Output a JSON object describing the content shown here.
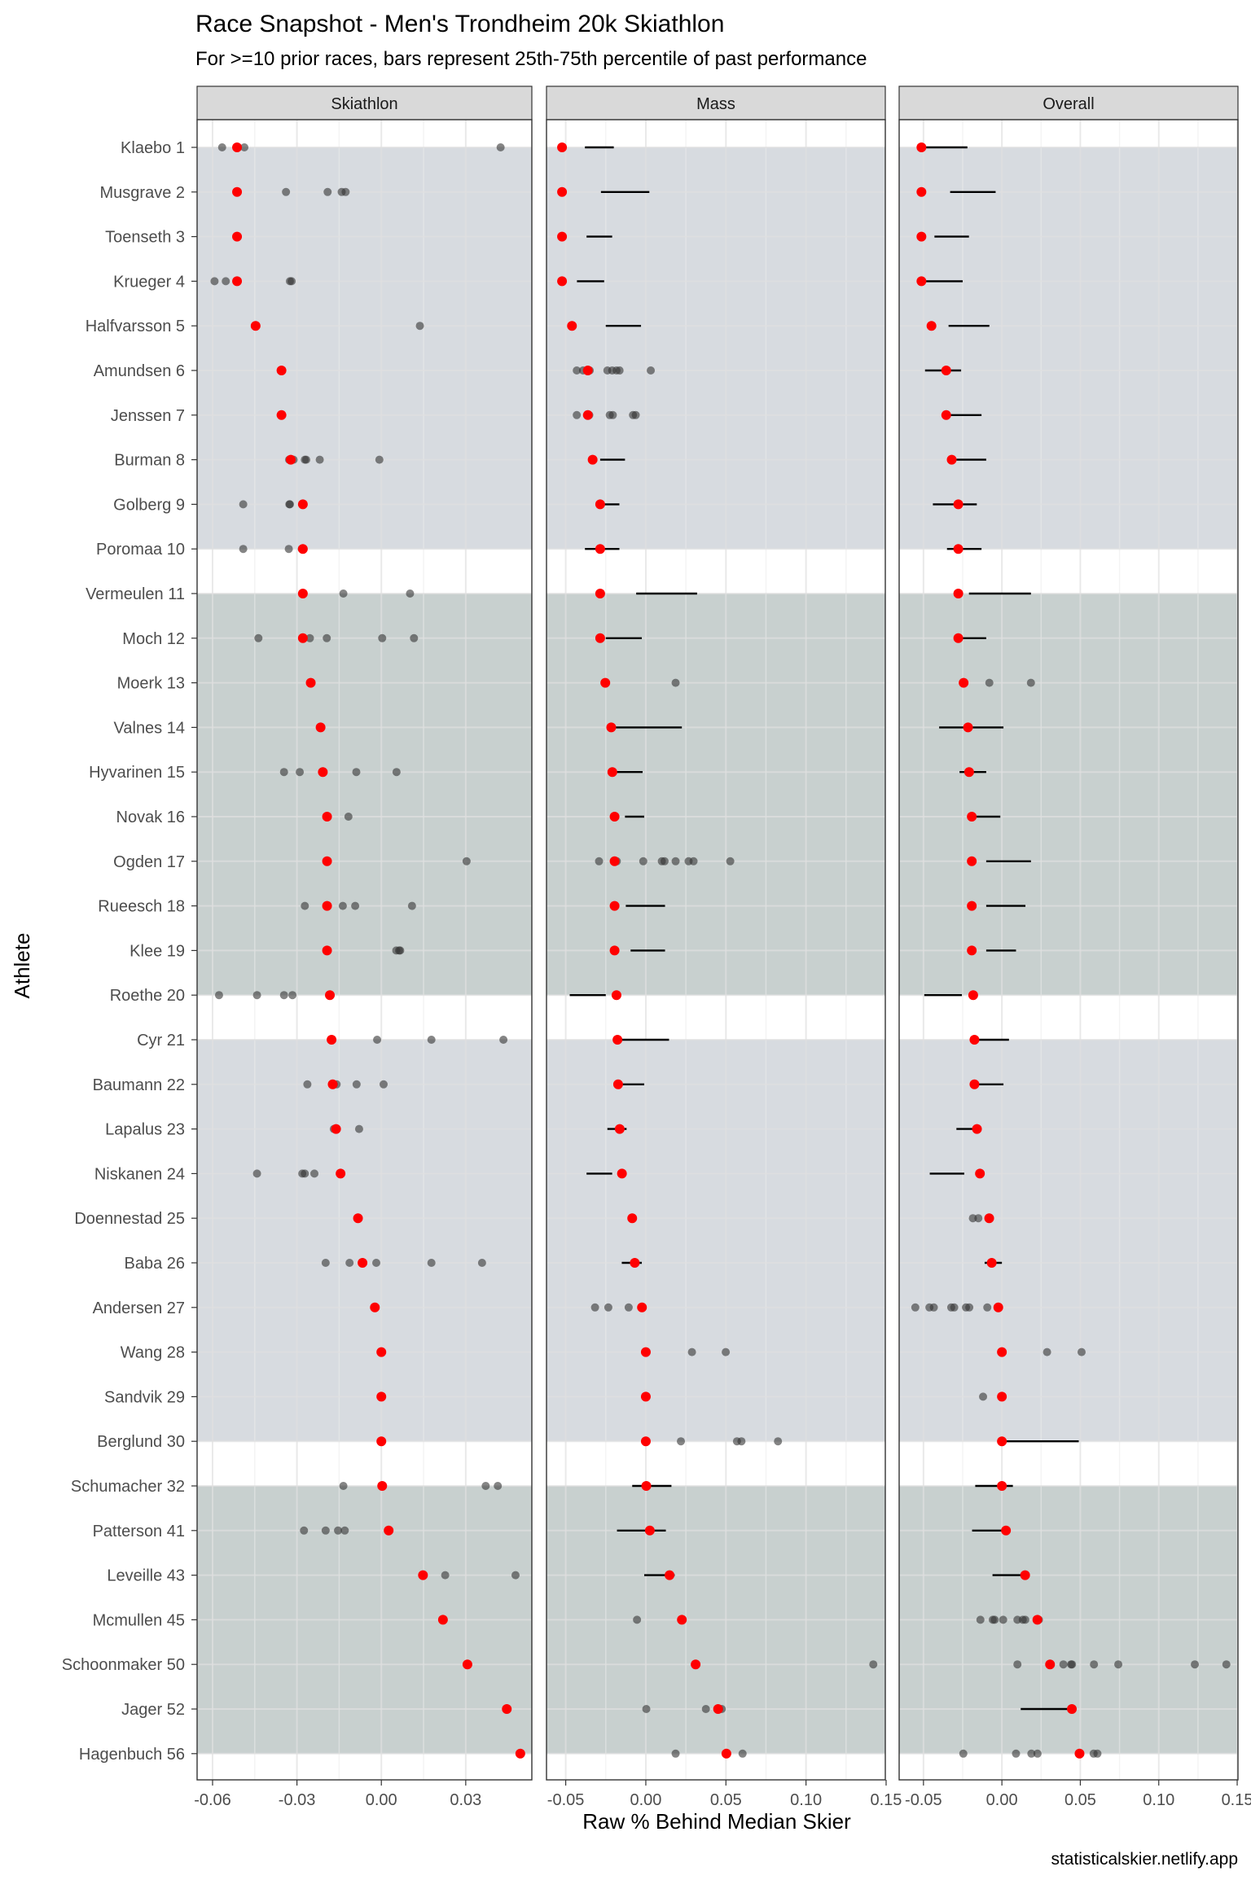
{
  "chart_data": {
    "type": "scatter",
    "title": "Race Snapshot -  Men's Trondheim 20k  Skiathlon",
    "subtitle": "For >=10 prior races, bars represent 25th-75th percentile of past performance",
    "xlabel": "Raw % Behind Median Skier",
    "ylabel": "Athlete",
    "caption": "statisticalskier.netlify.app",
    "athletes": [
      "Klaebo 1",
      "Musgrave 2",
      "Toenseth 3",
      "Krueger 4",
      "Halfvarsson 5",
      "Amundsen 6",
      "Jenssen 7",
      "Burman 8",
      "Golberg 9",
      "Poromaa 10",
      "Vermeulen 11",
      "Moch 12",
      "Moerk 13",
      "Valnes 14",
      "Hyvarinen 15",
      "Novak 16",
      "Ogden 17",
      "Rueesch 18",
      "Klee 19",
      "Roethe 20",
      "Cyr 21",
      "Baumann 22",
      "Lapalus 23",
      "Niskanen 24",
      "Doennestad 25",
      "Baba 26",
      "Andersen 27",
      "Wang 28",
      "Sandvik 29",
      "Berglund 30",
      "Schumacher 32",
      "Patterson 41",
      "Leveille 43",
      "Mcmullen 45",
      "Schoonmaker 50",
      "Jager 52",
      "Hagenbuch 56"
    ],
    "bands": [
      {
        "from": 0,
        "to": 9,
        "color": "#d7dbe0"
      },
      {
        "from": 10,
        "to": 19,
        "color": "#c8d0cf"
      },
      {
        "from": 20,
        "to": 29,
        "color": "#d7dbe0"
      },
      {
        "from": 30,
        "to": 36,
        "color": "#c8d0cf"
      }
    ],
    "colors": {
      "current": "#ff0000",
      "past": "#333333",
      "bar": "#000000",
      "strip": "#d9d9d9"
    },
    "facets": [
      {
        "name": "Skiathlon",
        "xlim": [
          -0.0655,
          0.0535
        ],
        "ticks": [
          -0.06,
          -0.03,
          0.0,
          0.03
        ],
        "tick_labels": [
          "-0.06",
          "-0.03",
          "0.00",
          "0.03"
        ],
        "current": [
          -0.0513,
          -0.0513,
          -0.0513,
          -0.0513,
          -0.0447,
          -0.0355,
          -0.0355,
          -0.0322,
          -0.0279,
          -0.0279,
          -0.0279,
          -0.0279,
          -0.0251,
          -0.0216,
          -0.0208,
          -0.0193,
          -0.0193,
          -0.0193,
          -0.0193,
          -0.0183,
          -0.0177,
          -0.0173,
          -0.0161,
          -0.0145,
          -0.0083,
          -0.0067,
          -0.0023,
          0.0,
          0.0,
          0.0,
          0.0003,
          0.0026,
          0.0148,
          0.0219,
          0.0306,
          0.0446,
          0.0494
        ],
        "past": [
          [
            -0.0566,
            -0.0487,
            0.0424
          ],
          [
            -0.0339,
            -0.0191,
            -0.0141,
            -0.0127
          ],
          [],
          [
            -0.0593,
            -0.0553,
            -0.0325,
            -0.0319
          ],
          [
            -0.0445,
            0.0137
          ],
          [],
          [],
          [
            -0.0328,
            -0.0312,
            -0.0272,
            -0.0267,
            -0.0219,
            -0.0007
          ],
          [
            -0.0491,
            -0.0327,
            -0.0325
          ],
          [
            -0.0491,
            -0.0329,
            -0.0283
          ],
          [
            -0.0135,
            0.0102
          ],
          [
            -0.0437,
            -0.0254,
            -0.0194,
            0.0003,
            0.0116
          ],
          [],
          [],
          [
            -0.0346,
            -0.029,
            -0.0089,
            0.0054
          ],
          [
            -0.0117
          ],
          [
            0.0303
          ],
          [
            -0.0272,
            -0.0137,
            -0.0093,
            0.0109
          ],
          [
            0.0053,
            0.0063,
            0.0067
          ],
          [
            -0.0577,
            -0.0442,
            -0.0346,
            -0.0316
          ],
          [
            -0.0015,
            0.0178,
            0.0434
          ],
          [
            -0.0263,
            -0.0169,
            -0.0159,
            -0.0088,
            0.0008
          ],
          [
            -0.0169,
            -0.0079
          ],
          [
            -0.0442,
            -0.0281,
            -0.0272,
            -0.0238
          ],
          [],
          [
            -0.0198,
            -0.0113,
            -0.0018,
            0.0178,
            0.0358
          ],
          [],
          [],
          [],
          [],
          [
            -0.0135,
            0.0371,
            0.0414
          ],
          [
            -0.0275,
            -0.0198,
            -0.0154,
            -0.013
          ],
          [
            0.0227,
            0.0477
          ],
          [],
          [],
          [],
          []
        ],
        "bars": [
          null,
          null,
          null,
          null,
          null,
          null,
          null,
          null,
          null,
          null,
          null,
          null,
          null,
          null,
          null,
          null,
          null,
          null,
          null,
          null,
          null,
          null,
          null,
          null,
          null,
          null,
          null,
          null,
          null,
          null,
          null,
          null,
          null,
          null,
          null,
          null,
          null
        ]
      },
      {
        "name": "Mass",
        "xlim": [
          -0.062,
          0.1495
        ],
        "ticks": [
          -0.05,
          0.0,
          0.05,
          0.1,
          0.15
        ],
        "tick_labels": [
          "-0.05",
          "0.00",
          "0.05",
          "0.10",
          "0.15"
        ],
        "current": [
          -0.0523,
          -0.0523,
          -0.0523,
          -0.0523,
          -0.0461,
          -0.0362,
          -0.0362,
          -0.0332,
          -0.0285,
          -0.0285,
          -0.0285,
          -0.0285,
          -0.0253,
          -0.0216,
          -0.0209,
          -0.0195,
          -0.0195,
          -0.0195,
          -0.0195,
          -0.0183,
          -0.0177,
          -0.0173,
          -0.0163,
          -0.0149,
          -0.0085,
          -0.0069,
          -0.0024,
          0.0,
          0.0,
          0.0,
          0.0003,
          0.0025,
          0.0148,
          0.0225,
          0.0311,
          0.0451,
          0.0503
        ],
        "past": [
          [],
          [],
          [],
          [],
          [],
          [
            -0.0431,
            -0.0392,
            -0.035,
            -0.024,
            -0.021,
            -0.0183,
            -0.0164,
            0.0031
          ],
          [
            -0.0431,
            -0.0353,
            -0.0225,
            -0.0206,
            -0.008,
            -0.0063
          ],
          [],
          [],
          [],
          [],
          [],
          [
            0.0186
          ],
          [],
          [],
          [],
          [
            -0.0292,
            -0.0181,
            -0.0016,
            0.01,
            0.0117,
            0.0186,
            0.0267,
            0.0298,
            0.0527
          ],
          [],
          [],
          [],
          [],
          [],
          [],
          [],
          [],
          [],
          [
            -0.0317,
            -0.0234,
            -0.0107
          ],
          [
            0.0288,
            0.0499
          ],
          [],
          [
            0.0219,
            0.0569,
            0.0597,
            0.0825
          ],
          [],
          [],
          [],
          [
            -0.0055
          ],
          [
            0.142
          ],
          [
            0.0003,
            0.0375,
            0.0458,
            0.0474
          ],
          [
            0.0186,
            0.0604
          ]
        ],
        "bars": [
          [
            -0.038,
            -0.02
          ],
          [
            -0.028,
            0.0022
          ],
          [
            -0.037,
            -0.021
          ],
          [
            -0.043,
            -0.026
          ],
          [
            -0.025,
            -0.003
          ],
          null,
          null,
          [
            -0.0285,
            -0.013
          ],
          [
            -0.028,
            -0.0165
          ],
          [
            -0.038,
            -0.0165
          ],
          [
            -0.006,
            0.032
          ],
          [
            -0.025,
            -0.0025
          ],
          null,
          [
            -0.021,
            0.0225
          ],
          [
            -0.021,
            -0.002
          ],
          [
            -0.013,
            -0.001
          ],
          null,
          [
            -0.0125,
            0.012
          ],
          [
            -0.0095,
            0.012
          ],
          [
            -0.0475,
            -0.025
          ],
          [
            -0.017,
            0.0145
          ],
          [
            -0.018,
            -0.001
          ],
          [
            -0.024,
            -0.012
          ],
          [
            -0.037,
            -0.021
          ],
          null,
          [
            -0.015,
            -0.0025
          ],
          null,
          null,
          null,
          null,
          [
            -0.0085,
            0.016
          ],
          [
            -0.018,
            0.0125
          ],
          [
            -0.001,
            0.018
          ],
          null,
          null,
          null,
          null
        ]
      },
      {
        "name": "Overall",
        "xlim": [
          -0.0655,
          0.1505
        ],
        "ticks": [
          -0.05,
          0.0,
          0.05,
          0.1,
          0.15
        ],
        "tick_labels": [
          "-0.05",
          "0.00",
          "0.05",
          "0.10",
          "0.15"
        ],
        "current": [
          -0.0513,
          -0.0513,
          -0.0513,
          -0.0513,
          -0.0449,
          -0.0355,
          -0.0355,
          -0.032,
          -0.0278,
          -0.0278,
          -0.0278,
          -0.0278,
          -0.0244,
          -0.0216,
          -0.0209,
          -0.0192,
          -0.0192,
          -0.0192,
          -0.0192,
          -0.0183,
          -0.0175,
          -0.0175,
          -0.0159,
          -0.014,
          -0.0081,
          -0.0065,
          -0.0023,
          0.0,
          0.0,
          0.0,
          0.0,
          0.0026,
          0.0148,
          0.0226,
          0.0307,
          0.0446,
          0.0495
        ],
        "past": [
          [],
          [],
          [],
          [],
          [],
          [],
          [],
          [],
          [],
          [],
          [],
          [],
          [
            -0.008,
            0.0185
          ],
          [],
          [],
          [],
          [],
          [],
          [],
          [],
          [],
          [],
          [],
          [],
          [
            -0.0185,
            -0.015
          ],
          [],
          [
            -0.0552,
            -0.0462,
            -0.0434,
            -0.0323,
            -0.0304,
            -0.0229,
            -0.0208,
            -0.0093
          ],
          [
            0.0288,
            0.0508
          ],
          [
            -0.012
          ],
          [],
          [],
          [],
          [],
          [
            -0.0137,
            -0.0058,
            -0.0046,
            0.0008,
            0.0099,
            0.0133,
            0.0149,
            0.0236
          ],
          [
            0.0099,
            0.0392,
            0.0441,
            0.0447,
            0.0587,
            0.0742,
            0.123,
            0.1431
          ],
          [],
          [
            -0.0246,
            0.009,
            0.0188,
            0.0227,
            0.0585,
            0.0609
          ]
        ],
        "bars": [
          [
            -0.05,
            -0.022
          ],
          [
            -0.033,
            -0.004
          ],
          [
            -0.043,
            -0.021
          ],
          [
            -0.05,
            -0.025
          ],
          [
            -0.034,
            -0.008
          ],
          [
            -0.049,
            -0.026
          ],
          [
            -0.033,
            -0.013
          ],
          [
            -0.029,
            -0.01
          ],
          [
            -0.044,
            -0.016
          ],
          [
            -0.035,
            -0.013
          ],
          [
            -0.021,
            0.0185
          ],
          [
            -0.028,
            -0.01
          ],
          null,
          [
            -0.04,
            0.001
          ],
          [
            -0.027,
            -0.01
          ],
          [
            -0.019,
            -0.001
          ],
          [
            -0.01,
            0.0185
          ],
          [
            -0.01,
            0.015
          ],
          [
            -0.01,
            0.009
          ],
          [
            -0.0495,
            -0.0255
          ],
          [
            -0.0175,
            0.0045
          ],
          [
            -0.0175,
            0.001
          ],
          [
            -0.029,
            -0.013
          ],
          [
            -0.046,
            -0.024
          ],
          null,
          [
            -0.011,
            0.0
          ],
          null,
          null,
          null,
          [
            0.001,
            0.049
          ],
          [
            -0.017,
            0.007
          ],
          [
            -0.019,
            0.004
          ],
          [
            -0.006,
            0.015
          ],
          null,
          null,
          [
            0.012,
            0.0446
          ],
          null
        ]
      }
    ]
  }
}
